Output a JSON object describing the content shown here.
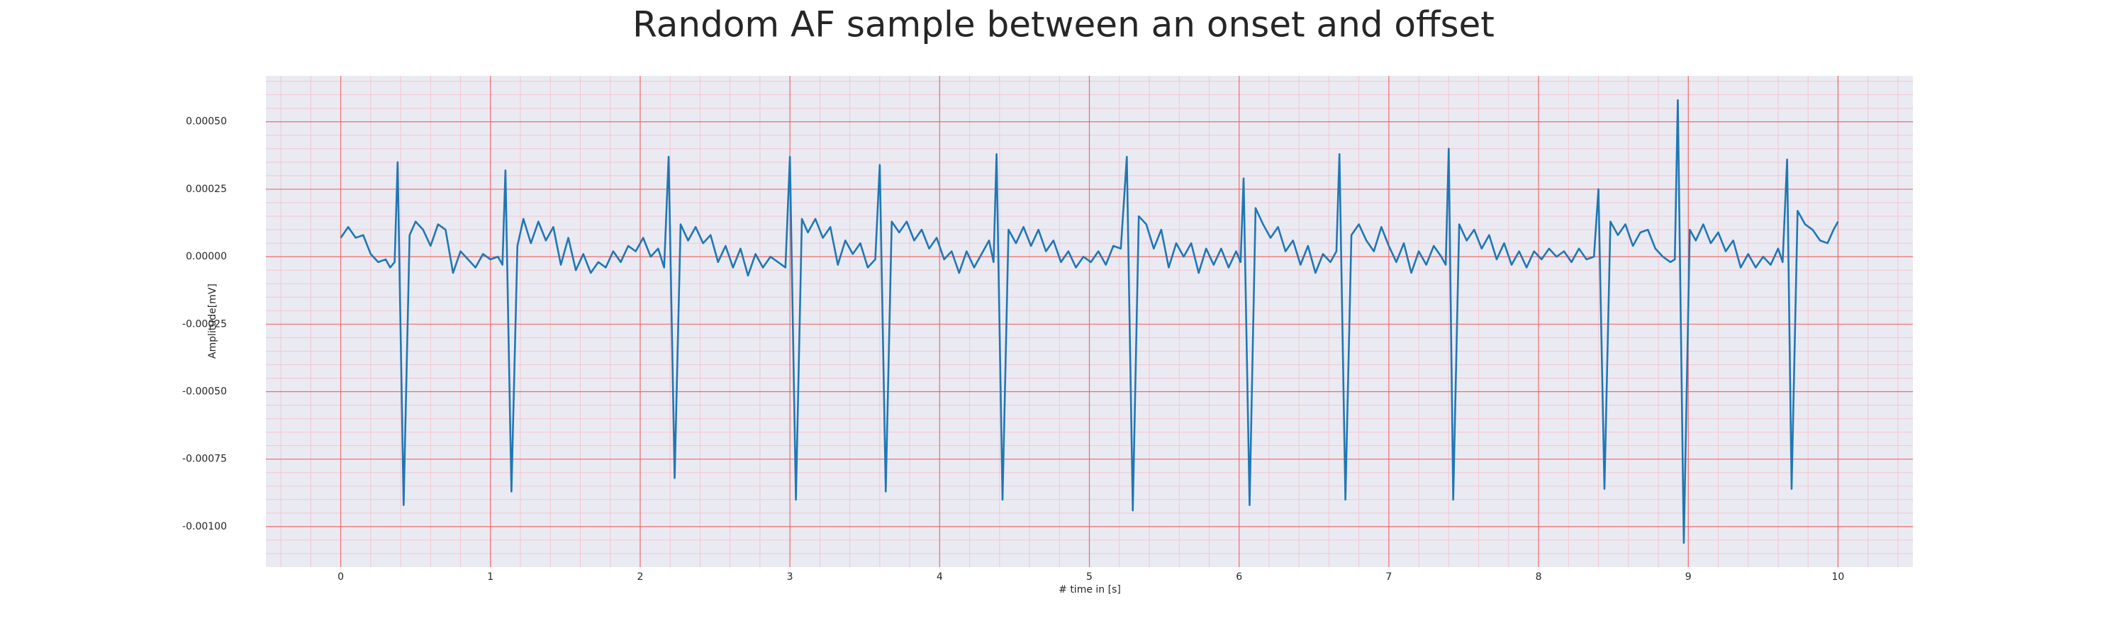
{
  "chart_data": {
    "type": "line",
    "title": "Random AF sample between an onset and offset",
    "x_label": "# time in [s]",
    "y_label": "Amplitude[mV]",
    "color": "#1f77b4",
    "grid": true,
    "xlim": [
      -0.5,
      10.5
    ],
    "ylim": [
      -0.00115,
      0.00067
    ],
    "xticks": [
      0,
      1,
      2,
      3,
      4,
      5,
      6,
      7,
      8,
      9,
      10
    ],
    "yticks": [
      {
        "value": -0.001,
        "label": "-0.00100"
      },
      {
        "value": -0.00075,
        "label": "-0.00075"
      },
      {
        "value": -0.0005,
        "label": "-0.00050"
      },
      {
        "value": -0.00025,
        "label": "-0.00025"
      },
      {
        "value": 0,
        "label": "0.00000"
      },
      {
        "value": 0.00025,
        "label": "0.00025"
      },
      {
        "value": 0.0005,
        "label": "0.00050"
      }
    ],
    "x": [
      0,
      0.05,
      0.1,
      0.15,
      0.2,
      0.25,
      0.3,
      0.33,
      0.36,
      0.38,
      0.42,
      0.46,
      0.5,
      0.55,
      0.6,
      0.65,
      0.7,
      0.75,
      0.8,
      0.85,
      0.9,
      0.95,
      1.0,
      1.05,
      1.08,
      1.1,
      1.14,
      1.18,
      1.22,
      1.27,
      1.32,
      1.37,
      1.42,
      1.47,
      1.52,
      1.57,
      1.62,
      1.67,
      1.72,
      1.77,
      1.82,
      1.87,
      1.92,
      1.97,
      2.02,
      2.07,
      2.12,
      2.16,
      2.19,
      2.23,
      2.27,
      2.32,
      2.37,
      2.42,
      2.47,
      2.52,
      2.57,
      2.62,
      2.67,
      2.72,
      2.77,
      2.82,
      2.87,
      2.92,
      2.97,
      3.0,
      3.04,
      3.08,
      3.12,
      3.17,
      3.22,
      3.27,
      3.32,
      3.37,
      3.42,
      3.47,
      3.52,
      3.57,
      3.6,
      3.64,
      3.68,
      3.73,
      3.78,
      3.83,
      3.88,
      3.93,
      3.98,
      4.03,
      4.08,
      4.13,
      4.18,
      4.23,
      4.28,
      4.33,
      4.36,
      4.38,
      4.42,
      4.46,
      4.51,
      4.56,
      4.61,
      4.66,
      4.71,
      4.76,
      4.81,
      4.86,
      4.91,
      4.96,
      5.01,
      5.06,
      5.11,
      5.16,
      5.21,
      5.25,
      5.29,
      5.33,
      5.38,
      5.43,
      5.48,
      5.53,
      5.58,
      5.63,
      5.68,
      5.73,
      5.78,
      5.83,
      5.88,
      5.93,
      5.98,
      6.01,
      6.03,
      6.07,
      6.11,
      6.16,
      6.21,
      6.26,
      6.31,
      6.36,
      6.41,
      6.46,
      6.51,
      6.56,
      6.61,
      6.65,
      6.67,
      6.71,
      6.75,
      6.8,
      6.85,
      6.9,
      6.95,
      7.0,
      7.05,
      7.1,
      7.15,
      7.2,
      7.25,
      7.3,
      7.35,
      7.38,
      7.4,
      7.43,
      7.47,
      7.52,
      7.57,
      7.62,
      7.67,
      7.72,
      7.77,
      7.82,
      7.87,
      7.92,
      7.97,
      8.02,
      8.07,
      8.12,
      8.17,
      8.22,
      8.27,
      8.32,
      8.37,
      8.4,
      8.44,
      8.48,
      8.53,
      8.58,
      8.63,
      8.68,
      8.73,
      8.78,
      8.83,
      8.88,
      8.91,
      8.93,
      8.97,
      9.01,
      9.05,
      9.1,
      9.15,
      9.2,
      9.25,
      9.3,
      9.35,
      9.4,
      9.45,
      9.5,
      9.55,
      9.6,
      9.63,
      9.66,
      9.69,
      9.73,
      9.78,
      9.83,
      9.88,
      9.93,
      9.97,
      10.0
    ],
    "values": [
      7e-05,
      0.00011,
      7e-05,
      8e-05,
      1e-05,
      -2e-05,
      -1e-05,
      -4e-05,
      -2e-05,
      0.00035,
      -0.00092,
      8e-05,
      0.00013,
      0.0001,
      4e-05,
      0.00012,
      0.0001,
      -6e-05,
      2e-05,
      -1e-05,
      -4e-05,
      1e-05,
      -1e-05,
      0.0,
      -3e-05,
      0.00032,
      -0.00087,
      4e-05,
      0.00014,
      5e-05,
      0.00013,
      6e-05,
      0.00011,
      -3e-05,
      7e-05,
      -5e-05,
      1e-05,
      -6e-05,
      -2e-05,
      -4e-05,
      2e-05,
      -2e-05,
      4e-05,
      2e-05,
      7e-05,
      0.0,
      3e-05,
      -4e-05,
      0.00037,
      -0.00082,
      0.00012,
      6e-05,
      0.00011,
      5e-05,
      8e-05,
      -2e-05,
      4e-05,
      -4e-05,
      3e-05,
      -7e-05,
      1e-05,
      -4e-05,
      0.0,
      -2e-05,
      -4e-05,
      0.00037,
      -0.0009,
      0.00014,
      9e-05,
      0.00014,
      7e-05,
      0.00011,
      -3e-05,
      6e-05,
      1e-05,
      5e-05,
      -4e-05,
      -1e-05,
      0.00034,
      -0.00087,
      0.00013,
      9e-05,
      0.00013,
      6e-05,
      0.0001,
      3e-05,
      7e-05,
      -1e-05,
      2e-05,
      -6e-05,
      2e-05,
      -4e-05,
      1e-05,
      6e-05,
      -2e-05,
      0.00038,
      -0.0009,
      0.0001,
      5e-05,
      0.00011,
      4e-05,
      0.0001,
      2e-05,
      6e-05,
      -2e-05,
      2e-05,
      -4e-05,
      0.0,
      -2e-05,
      2e-05,
      -3e-05,
      4e-05,
      3e-05,
      0.00037,
      -0.00094,
      0.00015,
      0.00012,
      3e-05,
      0.0001,
      -4e-05,
      5e-05,
      0.0,
      5e-05,
      -6e-05,
      3e-05,
      -3e-05,
      3e-05,
      -4e-05,
      2e-05,
      -2e-05,
      0.00029,
      -0.00092,
      0.00018,
      0.00012,
      7e-05,
      0.00011,
      2e-05,
      6e-05,
      -3e-05,
      4e-05,
      -6e-05,
      1e-05,
      -2e-05,
      2e-05,
      0.00038,
      -0.0009,
      8e-05,
      0.00012,
      6e-05,
      2e-05,
      0.00011,
      4e-05,
      -2e-05,
      5e-05,
      -6e-05,
      2e-05,
      -3e-05,
      4e-05,
      0.0,
      -3e-05,
      0.0004,
      -0.0009,
      0.00012,
      6e-05,
      0.0001,
      3e-05,
      8e-05,
      -1e-05,
      5e-05,
      -3e-05,
      2e-05,
      -4e-05,
      2e-05,
      -1e-05,
      3e-05,
      0.0,
      2e-05,
      -2e-05,
      3e-05,
      -1e-05,
      0.0,
      0.00025,
      -0.00086,
      0.00013,
      8e-05,
      0.00012,
      4e-05,
      9e-05,
      0.0001,
      3e-05,
      0.0,
      -2e-05,
      -1e-05,
      0.00058,
      -0.00106,
      0.0001,
      6e-05,
      0.00012,
      5e-05,
      9e-05,
      2e-05,
      6e-05,
      -4e-05,
      1e-05,
      -4e-05,
      0.0,
      -3e-05,
      3e-05,
      -2e-05,
      0.00036,
      -0.00086,
      0.00017,
      0.00012,
      0.0001,
      6e-05,
      5e-05,
      0.0001,
      0.00013
    ]
  }
}
